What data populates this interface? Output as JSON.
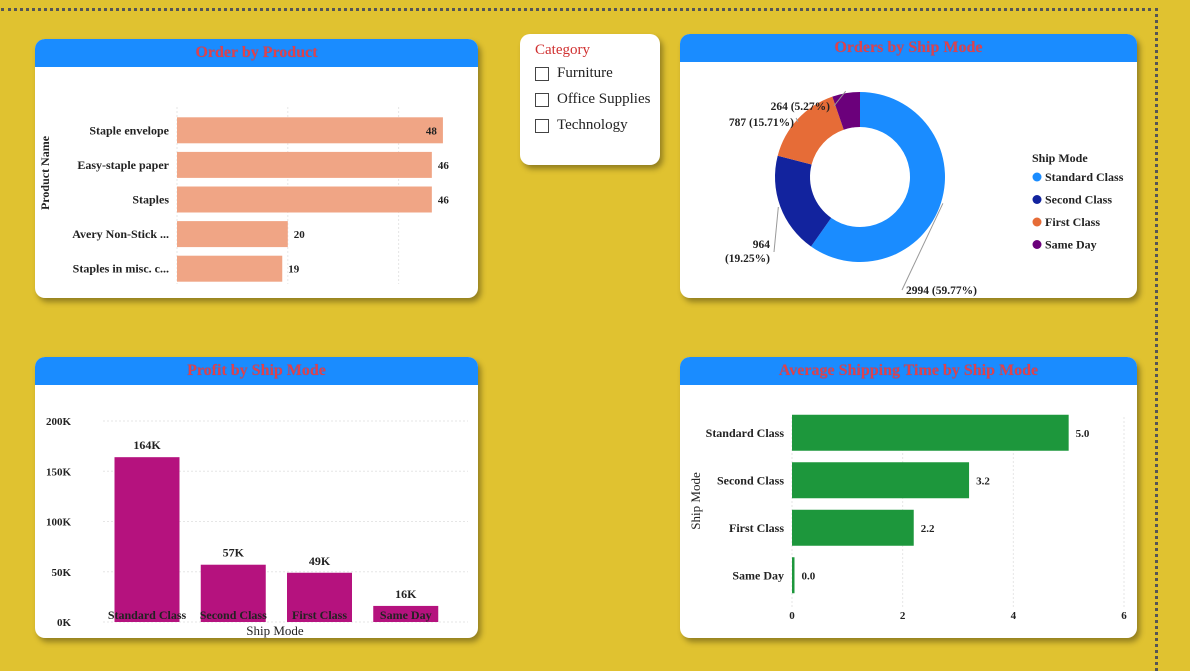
{
  "slicer": {
    "title": "Category",
    "items": [
      "Furniture",
      "Office Supplies",
      "Technology"
    ]
  },
  "colors": {
    "background": "#E0C230",
    "header": "#1A8CFF",
    "title": "#E0424C",
    "product_bar": "#F0A585",
    "profit_bar": "#B5127E",
    "shipping_bar": "#1D973C"
  },
  "chart_data": [
    {
      "type": "bar",
      "orientation": "horizontal",
      "title": "Order by Product",
      "ylabel": "Product Name",
      "xlabel": "",
      "categories": [
        "Staple envelope",
        "Easy-staple paper",
        "Staples",
        "Avery Non-Stick ...",
        "Staples in misc. c..."
      ],
      "values": [
        48,
        46,
        46,
        20,
        19
      ],
      "data_labels": [
        "48",
        "46",
        "46",
        "20",
        "19"
      ],
      "xticks": [
        "0",
        "20",
        "40"
      ],
      "xlim": [
        0,
        50
      ]
    },
    {
      "type": "pie",
      "donut": true,
      "title": "Orders by Ship Mode",
      "legend_title": "Ship Mode",
      "legend_position": "right",
      "categories": [
        "Standard Class",
        "Second Class",
        "First Class",
        "Same Day"
      ],
      "values": [
        2994,
        964,
        787,
        264
      ],
      "percents": [
        59.77,
        19.25,
        15.71,
        5.27
      ],
      "data_labels": [
        "2994 (59.77%)",
        "964 (19.25%)",
        "787 (15.71%)",
        "264 (5.27%)"
      ],
      "colors": [
        "#1A8CFF",
        "#12239E",
        "#E66C37",
        "#6B007B"
      ]
    },
    {
      "type": "bar",
      "title": "Profit by Ship Mode",
      "xlabel": "Ship Mode",
      "ylabel": "",
      "categories": [
        "Standard Class",
        "Second Class",
        "First Class",
        "Same Day"
      ],
      "values": [
        164000,
        57000,
        49000,
        16000
      ],
      "data_labels": [
        "164K",
        "57K",
        "49K",
        "16K"
      ],
      "yticks": [
        "0K",
        "50K",
        "100K",
        "150K",
        "200K"
      ],
      "ylim": [
        0,
        200000
      ]
    },
    {
      "type": "bar",
      "orientation": "horizontal",
      "title": "Average Shipping Time by Ship Mode",
      "ylabel": "Ship Mode",
      "xlabel": "",
      "categories": [
        "Standard Class",
        "Second Class",
        "First Class",
        "Same Day"
      ],
      "values": [
        5.0,
        3.2,
        2.2,
        0.0
      ],
      "data_labels": [
        "5.0",
        "3.2",
        "2.2",
        "0.0"
      ],
      "xticks": [
        "0",
        "2",
        "4",
        "6"
      ],
      "xlim": [
        0,
        6
      ]
    }
  ]
}
